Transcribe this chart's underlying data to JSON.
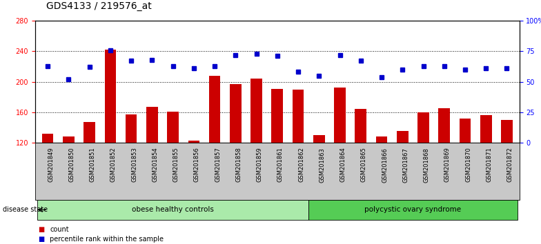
{
  "title": "GDS4133 / 219576_at",
  "samples": [
    "GSM201849",
    "GSM201850",
    "GSM201851",
    "GSM201852",
    "GSM201853",
    "GSM201854",
    "GSM201855",
    "GSM201856",
    "GSM201857",
    "GSM201858",
    "GSM201859",
    "GSM201861",
    "GSM201862",
    "GSM201863",
    "GSM201864",
    "GSM201865",
    "GSM201866",
    "GSM201867",
    "GSM201868",
    "GSM201869",
    "GSM201870",
    "GSM201871",
    "GSM201872"
  ],
  "counts": [
    132,
    128,
    147,
    242,
    157,
    167,
    161,
    123,
    208,
    197,
    204,
    191,
    190,
    130,
    192,
    164,
    128,
    135,
    160,
    165,
    152,
    156,
    150
  ],
  "percentiles": [
    63,
    52,
    62,
    76,
    67,
    68,
    63,
    61,
    63,
    72,
    73,
    71,
    58,
    55,
    72,
    67,
    54,
    60,
    63,
    63,
    60,
    61,
    61
  ],
  "group1_label": "obese healthy controls",
  "group1_samples": 13,
  "group2_label": "polycystic ovary syndrome",
  "group2_samples": 10,
  "disease_state_label": "disease state",
  "ylim_left": [
    120,
    280
  ],
  "ylim_right": [
    0,
    100
  ],
  "yticks_left": [
    120,
    160,
    200,
    240,
    280
  ],
  "yticks_right": [
    0,
    25,
    50,
    75,
    100
  ],
  "ytick_labels_right": [
    "0",
    "25",
    "50",
    "75",
    "100%"
  ],
  "bar_color": "#cc0000",
  "dot_color": "#0000cc",
  "bg_plot": "#ffffff",
  "bg_xtick": "#c8c8c8",
  "group1_color": "#aaeaaa",
  "group2_color": "#55cc55",
  "legend_bar_label": "count",
  "legend_dot_label": "percentile rank within the sample",
  "title_fontsize": 10,
  "tick_fontsize": 7,
  "label_fontsize": 8
}
